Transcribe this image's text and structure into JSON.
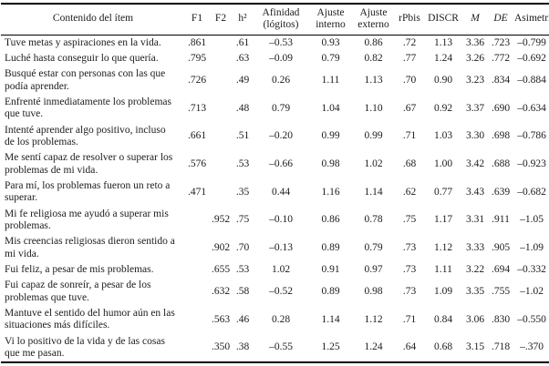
{
  "table": {
    "columns": [
      {
        "key": "item",
        "label": "Contenido del ítem",
        "italic": false
      },
      {
        "key": "f1",
        "label": "F1",
        "italic": false
      },
      {
        "key": "f2",
        "label": "F2",
        "italic": false
      },
      {
        "key": "h2",
        "label": "h²",
        "italic": false
      },
      {
        "key": "afinidad",
        "label": "Afinidad (lógitos)",
        "italic": false
      },
      {
        "key": "ajuste-interno",
        "label": "Ajuste interno",
        "italic": false
      },
      {
        "key": "ajuste-externo",
        "label": "Ajuste externo",
        "italic": false
      },
      {
        "key": "rpbis",
        "label": "rPbis",
        "italic": false
      },
      {
        "key": "discr",
        "label": "DISCR",
        "italic": false
      },
      {
        "key": "m",
        "label": "M",
        "italic": true
      },
      {
        "key": "de",
        "label": "DE",
        "italic": true
      },
      {
        "key": "asimetria",
        "label": "Asimetría",
        "italic": false
      }
    ],
    "rows": [
      [
        "Tuve metas y aspiraciones en la vida.",
        ".861",
        "",
        ".61",
        "–0.53",
        "0.93",
        "0.86",
        ".72",
        "1.13",
        "3.36",
        ".723",
        "–0.799"
      ],
      [
        "Luché hasta conseguir lo que quería.",
        ".795",
        "",
        ".63",
        "–0.09",
        "0.79",
        "0.82",
        ".77",
        "1.24",
        "3.26",
        ".772",
        "–0.692"
      ],
      [
        "Busqué estar con personas con las que podía aprender.",
        ".726",
        "",
        ".49",
        "0.26",
        "1.11",
        "1.13",
        ".70",
        "0.90",
        "3.23",
        ".834",
        "–0.884"
      ],
      [
        "Enfrenté inmediatamente los problemas que tuve.",
        ".713",
        "",
        ".48",
        "0.79",
        "1.04",
        "1.10",
        ".67",
        "0.92",
        "3.37",
        ".690",
        "–0.634"
      ],
      [
        "Intenté aprender algo positivo, incluso de los problemas.",
        ".661",
        "",
        ".51",
        "–0.20",
        "0.99",
        "0.99",
        ".71",
        "1.03",
        "3.30",
        ".698",
        "–0.786"
      ],
      [
        "Me sentí capaz de resolver o superar los problemas de mi vida.",
        ".576",
        "",
        ".53",
        "–0.66",
        "0.98",
        "1.02",
        ".68",
        "1.00",
        "3.42",
        ".688",
        "–0.923"
      ],
      [
        "Para mí, los problemas fueron un reto a superar.",
        ".471",
        "",
        ".35",
        "0.44",
        "1.16",
        "1.14",
        ".62",
        "0.77",
        "3.43",
        ".639",
        "–0.682"
      ],
      [
        "Mi fe religiosa me ayudó a superar mis problemas.",
        "",
        ".952",
        ".75",
        "–0.10",
        "0.86",
        "0.78",
        ".75",
        "1.17",
        "3.31",
        ".911",
        "–1.05"
      ],
      [
        "Mis creencias religiosas dieron sentido a mi vida.",
        "",
        ".902",
        ".70",
        "–0.13",
        "0.89",
        "0.79",
        ".73",
        "1.12",
        "3.33",
        ".905",
        "–1.09"
      ],
      [
        "Fui feliz, a pesar de mis problemas.",
        "",
        ".655",
        ".53",
        "1.02",
        "0.91",
        "0.97",
        ".73",
        "1.11",
        "3.22",
        ".694",
        "–0.332"
      ],
      [
        "Fui capaz de sonreír, a pesar de los problemas que tuve.",
        "",
        ".632",
        ".58",
        "–0.52",
        "0.89",
        "0.98",
        ".73",
        "1.09",
        "3.35",
        ".755",
        "–1.02"
      ],
      [
        "Mantuve el sentido del humor aún en las situaciones más difíciles.",
        "",
        ".563",
        ".46",
        "0.28",
        "1.14",
        "1.12",
        ".71",
        "0.84",
        "3.06",
        ".830",
        "–0.550"
      ],
      [
        "Vi lo positivo de la vida y de las cosas que me pasan.",
        "",
        ".350",
        ".38",
        "–0.55",
        "1.25",
        "1.24",
        ".64",
        "0.68",
        "3.15",
        ".718",
        "–.370"
      ]
    ]
  }
}
